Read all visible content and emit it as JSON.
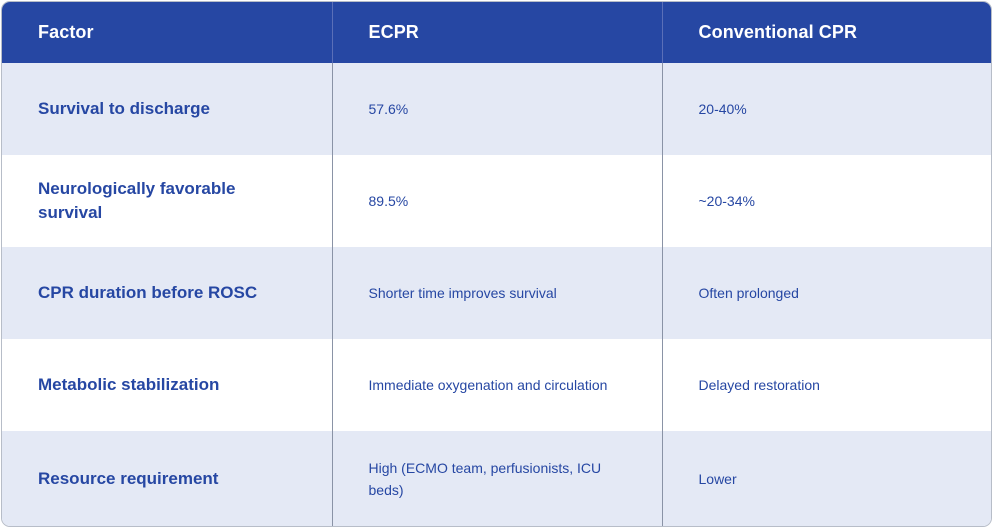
{
  "table": {
    "headers": [
      "Factor",
      "ECPR",
      "Conventional CPR"
    ],
    "rows": [
      [
        "Survival to discharge",
        "57.6%",
        "20-40%"
      ],
      [
        "Neurologically favorable survival",
        "89.5%",
        "~20-34%"
      ],
      [
        "CPR duration before ROSC",
        "Shorter time improves survival",
        "Often prolonged"
      ],
      [
        "Metabolic stabilization",
        "Immediate oxygenation and circulation",
        "Delayed restoration"
      ],
      [
        "Resource requirement",
        "High (ECMO team, perfusionists, ICU beds)",
        "Lower"
      ]
    ]
  },
  "colors": {
    "header_bg": "#2647a3",
    "header_text": "#ffffff",
    "row_alt_bg": "#e4e9f5",
    "row_bg": "#ffffff",
    "cell_text": "#2647a3"
  }
}
